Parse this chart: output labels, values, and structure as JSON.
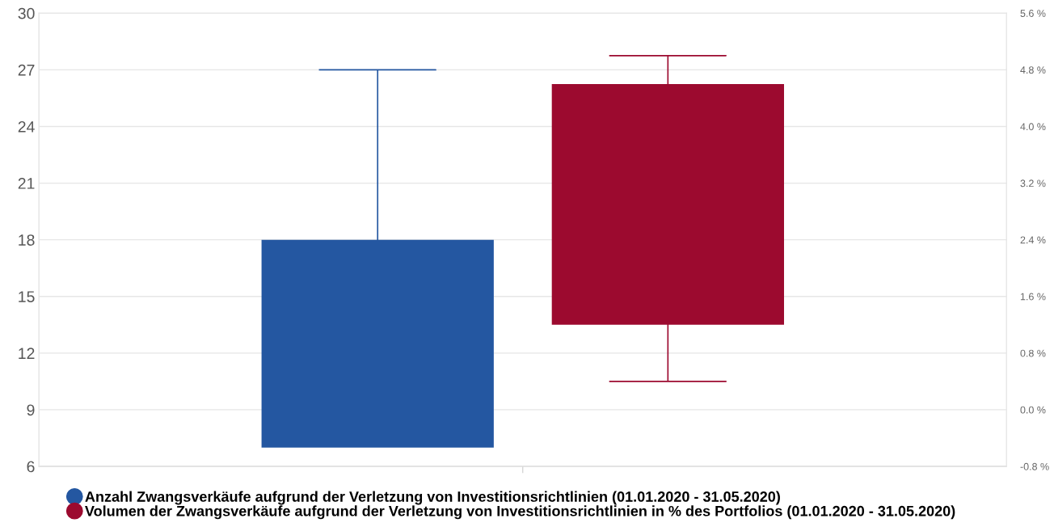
{
  "chart_data": {
    "type": "candlestick",
    "categories": [
      null
    ],
    "series": [
      {
        "name": "Anzahl Zwangsverkäufe aufgrund der Verletzung von Investitionsrichtlinien (01.01.2020 - 31.05.2020)",
        "color": "#2457a1",
        "ohlc": [
          [
            7,
            27,
            7,
            18
          ]
        ]
      },
      {
        "name": "Volumen der Zwangsverkäufe aufgrund der Verletzung von Investitionsrichtlinien in % des Portfolios (01.01.2020 - 31.05.2020)",
        "color": "#9c0a2f",
        "axis": "y2",
        "ohlc": [
          [
            1.2,
            5.0,
            0.4,
            4.6
          ]
        ]
      }
    ],
    "ylim": [
      6,
      30
    ],
    "yticks": [
      6,
      9,
      12,
      15,
      18,
      21,
      24,
      27,
      30
    ],
    "y2lim": [
      -0.8,
      5.6
    ],
    "y2ticks": [
      {
        "value": -0.8,
        "label": "-0.8 %"
      },
      {
        "value": 0,
        "label": "0.0 %"
      },
      {
        "value": 0.8,
        "label": "0.8 %"
      },
      {
        "value": 1.6,
        "label": "1.6 %"
      },
      {
        "value": 2.4,
        "label": "2.4 %"
      },
      {
        "value": 3.2,
        "label": "3.2 %"
      },
      {
        "value": 4.0,
        "label": "4.0 %"
      },
      {
        "value": 4.8,
        "label": "4.8 %"
      },
      {
        "value": 5.6,
        "label": "5.6 %"
      }
    ],
    "grid": "y",
    "legend": "bottom left",
    "marker": "circle"
  }
}
